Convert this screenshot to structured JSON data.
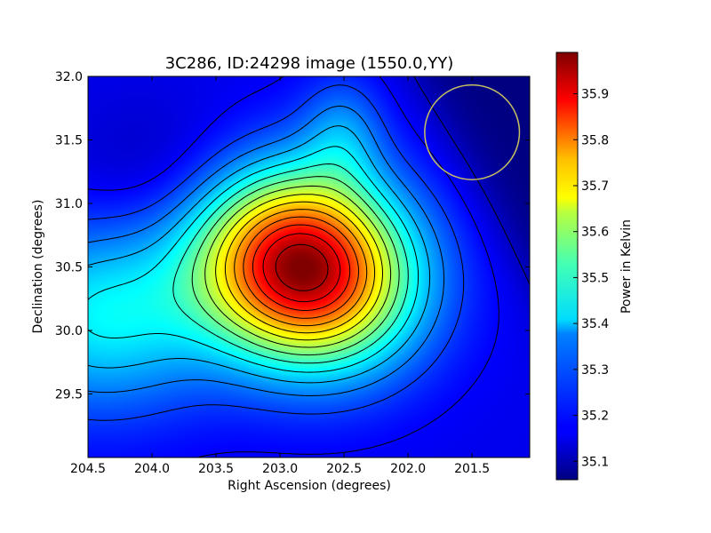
{
  "chart_data": {
    "type": "heatmap",
    "title": "3C286, ID:24298 image (1550.0,YY)",
    "xlabel": "Right Ascension (degrees)",
    "ylabel": "Declination (degrees)",
    "xlim": [
      204.5,
      201.05
    ],
    "ylim": [
      29.0,
      32.0
    ],
    "x_ticks": [
      {
        "value": 204.5,
        "label": "204.5"
      },
      {
        "value": 204.0,
        "label": "204.0"
      },
      {
        "value": 203.5,
        "label": "203.5"
      },
      {
        "value": 203.0,
        "label": "203.0"
      },
      {
        "value": 202.5,
        "label": "202.5"
      },
      {
        "value": 202.0,
        "label": "202.0"
      },
      {
        "value": 201.5,
        "label": "201.5"
      }
    ],
    "y_ticks": [
      {
        "value": 29.5,
        "label": "29.5"
      },
      {
        "value": 30.0,
        "label": "30.0"
      },
      {
        "value": 30.5,
        "label": "30.5"
      },
      {
        "value": 31.0,
        "label": "31.0"
      },
      {
        "value": 31.5,
        "label": "31.5"
      },
      {
        "value": 32.0,
        "label": "32.0"
      }
    ],
    "colorbar": {
      "label": "Power in Kelvin",
      "range": [
        35.06,
        35.99
      ],
      "ticks": [
        {
          "value": 35.1,
          "label": "35.1"
        },
        {
          "value": 35.2,
          "label": "35.2"
        },
        {
          "value": 35.3,
          "label": "35.3"
        },
        {
          "value": 35.4,
          "label": "35.4"
        },
        {
          "value": 35.5,
          "label": "35.5"
        },
        {
          "value": 35.6,
          "label": "35.6"
        },
        {
          "value": 35.7,
          "label": "35.7"
        },
        {
          "value": 35.8,
          "label": "35.8"
        },
        {
          "value": 35.9,
          "label": "35.9"
        }
      ]
    },
    "peak": {
      "ra": 202.82,
      "dec": 30.5,
      "value": 35.99
    },
    "beam_circle": {
      "ra": 201.5,
      "dec": 31.56,
      "radius_deg": 0.37,
      "color": "#c8c060"
    },
    "colormap": "jet",
    "contours": true
  }
}
